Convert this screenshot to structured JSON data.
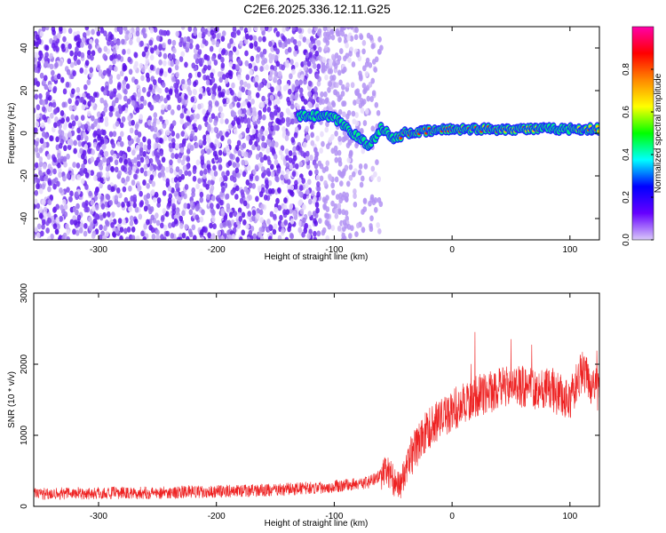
{
  "title": "C2E6.2025.336.12.11.G25",
  "chart_data": [
    {
      "type": "heatmap",
      "xlabel": "Height of straight line (km)",
      "ylabel": "Frequency (Hz)",
      "xlim": [
        -355,
        125
      ],
      "ylim": [
        -50,
        50
      ],
      "xticks": [
        -300,
        -200,
        -100,
        0,
        100
      ],
      "yticks": [
        -40,
        -20,
        0,
        20,
        40
      ],
      "tick_labels_x": [
        "-300",
        "-200",
        "-100",
        "0",
        "100"
      ],
      "tick_labels_y": [
        "-40",
        "-20",
        "0",
        "20",
        "40"
      ],
      "colorbar": {
        "label": "Normalized spectral amplitude",
        "range": [
          0,
          1
        ],
        "ticks": [
          0.0,
          0.2,
          0.4,
          0.6,
          0.8
        ],
        "tick_labels": [
          "0.0",
          "0.2",
          "0.4",
          "0.6",
          "0.8"
        ],
        "colormap": [
          "#d9c9f9",
          "#6600ff",
          "#0000ff",
          "#00ffff",
          "#00ff00",
          "#ffff00",
          "#ff8800",
          "#ff0000",
          "#ff00aa"
        ]
      },
      "noise_region": {
        "x": [
          -355,
          -60
        ],
        "y": [
          -50,
          50
        ]
      },
      "signal_track": [
        {
          "x": -130,
          "y": 8
        },
        {
          "x": -110,
          "y": 8
        },
        {
          "x": -100,
          "y": 7
        },
        {
          "x": -90,
          "y": 3
        },
        {
          "x": -80,
          "y": -2
        },
        {
          "x": -70,
          "y": -6
        },
        {
          "x": -60,
          "y": 3
        },
        {
          "x": -50,
          "y": -3
        },
        {
          "x": -40,
          "y": 0
        },
        {
          "x": -20,
          "y": 1
        },
        {
          "x": 0,
          "y": 2
        },
        {
          "x": 40,
          "y": 2
        },
        {
          "x": 80,
          "y": 2
        },
        {
          "x": 125,
          "y": 2
        }
      ]
    },
    {
      "type": "line",
      "xlabel": "Height of straight line (km)",
      "ylabel": "SNR (10 * v/v)",
      "xlim": [
        -355,
        125
      ],
      "ylim": [
        0,
        3000
      ],
      "xticks": [
        -300,
        -200,
        -100,
        0,
        100
      ],
      "yticks": [
        0,
        1000,
        2000,
        3000
      ],
      "tick_labels_x": [
        "-300",
        "-200",
        "-100",
        "0",
        "100"
      ],
      "tick_labels_y": [
        "0",
        "1000",
        "2000",
        "3000"
      ],
      "color": "#ee2222",
      "series_envelope": [
        {
          "x": -355,
          "y": 180
        },
        {
          "x": -250,
          "y": 190
        },
        {
          "x": -150,
          "y": 230
        },
        {
          "x": -100,
          "y": 280
        },
        {
          "x": -70,
          "y": 340
        },
        {
          "x": -55,
          "y": 500
        },
        {
          "x": -45,
          "y": 260
        },
        {
          "x": -35,
          "y": 700
        },
        {
          "x": -20,
          "y": 1100
        },
        {
          "x": 0,
          "y": 1350
        },
        {
          "x": 20,
          "y": 1550
        },
        {
          "x": 50,
          "y": 1700
        },
        {
          "x": 80,
          "y": 1650
        },
        {
          "x": 100,
          "y": 1500
        },
        {
          "x": 110,
          "y": 1900
        },
        {
          "x": 125,
          "y": 1600
        }
      ]
    }
  ]
}
